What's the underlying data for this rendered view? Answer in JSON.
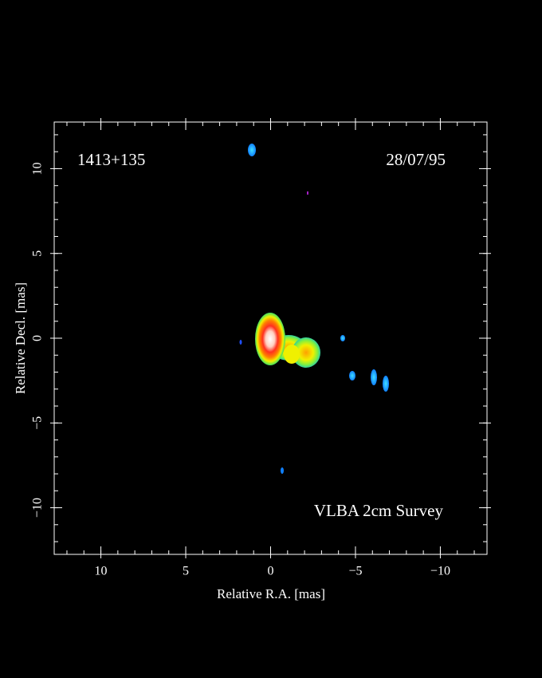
{
  "chart_data": {
    "type": "image",
    "source": "1413+135",
    "date": "28/07/95",
    "survey": "VLBA 2cm Survey",
    "x_label": "Relative R.A. [mas]",
    "y_label": "Relative Decl. [mas]",
    "xlim": [
      12.75,
      -12.75
    ],
    "ylim": [
      -12.75,
      12.75
    ],
    "xticks": [
      10,
      5,
      0,
      {
        "value": -5,
        "label": "−5"
      },
      {
        "value": -10,
        "label": "−10"
      }
    ],
    "yticks": [
      {
        "value": -10,
        "label": "−10"
      },
      {
        "value": -5,
        "label": "−5"
      },
      0,
      5,
      10
    ],
    "xminorticks": [
      12,
      11,
      10,
      9,
      8,
      7,
      6,
      5,
      4,
      3,
      2,
      1,
      0,
      -1,
      -2,
      -3,
      -4,
      -5,
      -6,
      -7,
      -8,
      -9,
      -10,
      -11,
      -12
    ],
    "yminorticks": [
      -12,
      -11,
      -10,
      -9,
      -8,
      -7,
      -6,
      -5,
      -4,
      -3,
      -2,
      -1,
      0,
      1,
      2,
      3,
      4,
      5,
      6,
      7,
      8,
      9,
      10,
      11,
      12
    ]
  }
}
